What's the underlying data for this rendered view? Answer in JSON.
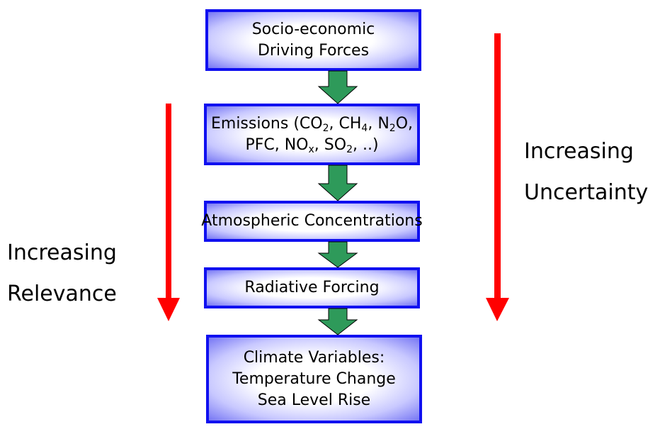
{
  "boxes": {
    "drivers": {
      "line1": "Socio-economic",
      "line2": "Driving Forces"
    },
    "emissions": {
      "l1_a": "Emissions (CO",
      "l1_b": "2",
      "l1_c": ", CH",
      "l1_d": "4",
      "l1_e": ", N",
      "l1_f": "2",
      "l1_g": "O,",
      "l2_a": "PFC, NO",
      "l2_b": "x",
      "l2_c": ", SO",
      "l2_d": "2",
      "l2_e": ", ..)"
    },
    "concentrations": {
      "line1": "Atmospheric Concentrations"
    },
    "forcing": {
      "line1": "Radiative Forcing"
    },
    "climate": {
      "line1": "Climate Variables:",
      "line2": "Temperature Change",
      "line3": "Sea Level Rise"
    }
  },
  "left_label": {
    "line1": "Increasing",
    "line2": "Relevance"
  },
  "right_label": {
    "line1": "Increasing",
    "line2": "Uncertainty"
  },
  "colors": {
    "box_border": "#1010f0",
    "down_arrow_fill": "#2e9a5a",
    "side_arrow": "#ff0000"
  }
}
